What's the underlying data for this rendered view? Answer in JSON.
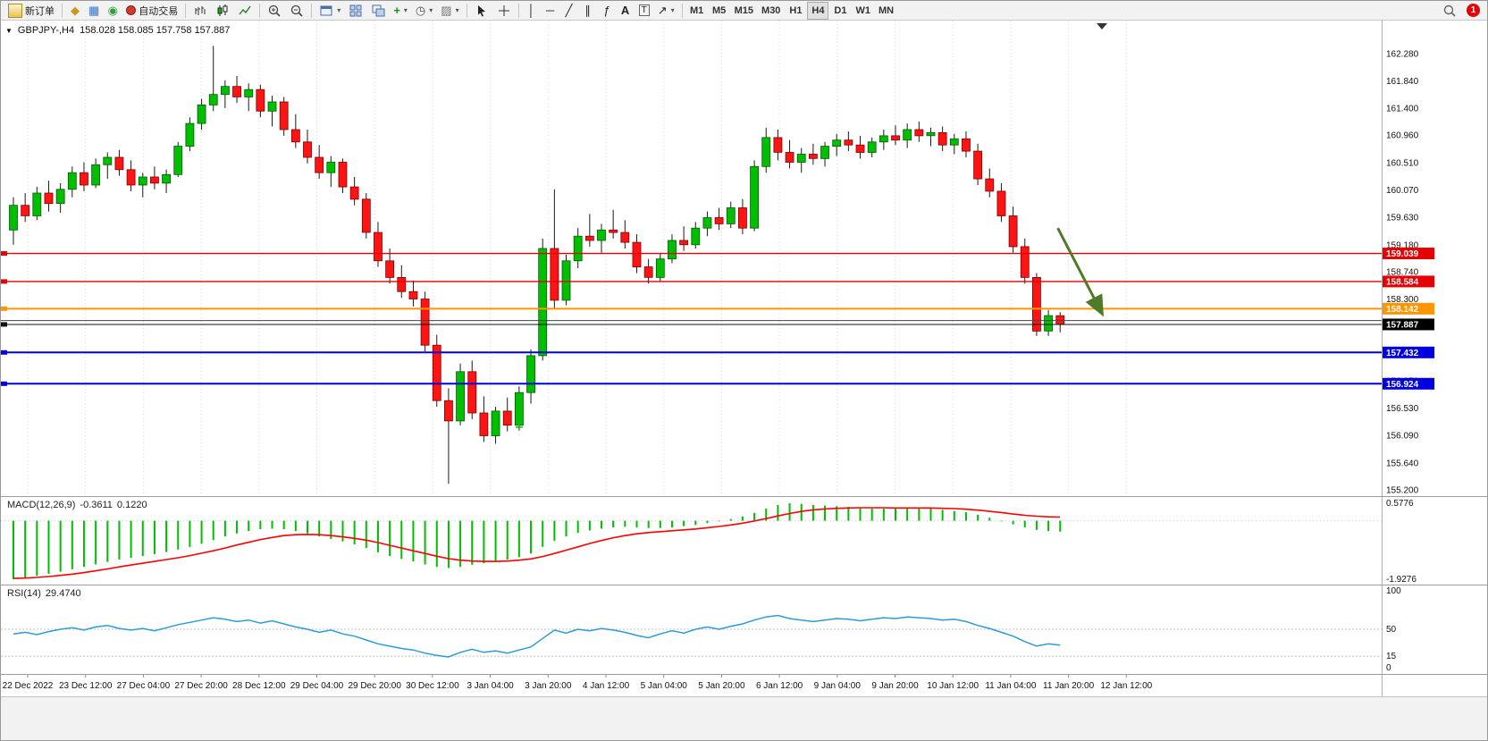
{
  "toolbar": {
    "new_order_label": "新订单",
    "autotrading_label": "自动交易",
    "timeframes": [
      "M1",
      "M5",
      "M15",
      "M30",
      "H1",
      "H4",
      "D1",
      "W1",
      "MN"
    ],
    "active_timeframe": "H4",
    "notification_count": "1"
  },
  "chart": {
    "symbol_period": "GBPJPY-,H4",
    "ohlc": "158.028 158.085 157.758 157.887"
  },
  "indicators": {
    "macd_name": "MACD(12,26,9)",
    "macd_value": "-0.3611",
    "macd_signal": "0.1220",
    "rsi_name": "RSI(14)",
    "rsi_value": "29.4740"
  },
  "chart_data": [
    {
      "type": "candlestick",
      "symbol": "GBPJPY-",
      "period": "H4",
      "last_ohlc": {
        "open": 158.028,
        "high": 158.085,
        "low": 157.758,
        "close": 157.887
      },
      "up_color": "#00BE00",
      "down_color": "#FF1414",
      "y_range": [
        155.1,
        162.82
      ],
      "y_axis_ticks": [
        "162.280",
        "161.840",
        "161.400",
        "160.960",
        "160.510",
        "160.070",
        "159.630",
        "159.180",
        "158.740",
        "158.300",
        "157.860",
        "157.420",
        "156.970",
        "156.530",
        "156.090",
        "155.640",
        "155.200"
      ],
      "x_labels": [
        "22 Dec 2022",
        "23 Dec 12:00",
        "27 Dec 04:00",
        "27 Dec 20:00",
        "28 Dec 12:00",
        "29 Dec 04:00",
        "29 Dec 20:00",
        "30 Dec 12:00",
        "3 Jan 04:00",
        "3 Jan 20:00",
        "4 Jan 12:00",
        "5 Jan 04:00",
        "5 Jan 20:00",
        "6 Jan 12:00",
        "9 Jan 04:00",
        "9 Jan 20:00",
        "10 Jan 12:00",
        "11 Jan 04:00",
        "11 Jan 20:00",
        "12 Jan 12:00"
      ],
      "hlines": [
        {
          "price": 159.039,
          "color": "#E60000",
          "width": 1.4,
          "label": "159.039"
        },
        {
          "price": 158.584,
          "color": "#E60000",
          "width": 1.4,
          "label": "158.584"
        },
        {
          "price": 158.142,
          "color": "#FF9500",
          "width": 2,
          "label": "158.142"
        },
        {
          "price": 157.95,
          "color": "#444444",
          "width": 1,
          "label": null
        },
        {
          "price": 157.887,
          "color": "#111111",
          "width": 1,
          "label": "157.887",
          "label_bg": "#000000"
        },
        {
          "price": 157.432,
          "color": "#0000E0",
          "width": 2,
          "label": "157.432"
        },
        {
          "price": 156.924,
          "color": "#0000E0",
          "width": 2,
          "label": "156.924"
        }
      ],
      "arrow": {
        "from_bar": 88.8,
        "from_price": 159.45,
        "to_bar": 92.6,
        "to_price": 158.05,
        "color": "#4E7B28"
      },
      "plus_marker": {
        "bar": 43,
        "price": 156.22,
        "color": "#22AA22"
      },
      "candles": [
        [
          159.42,
          159.95,
          159.18,
          159.82
        ],
        [
          159.82,
          160.02,
          159.55,
          159.65
        ],
        [
          159.65,
          160.12,
          159.58,
          160.02
        ],
        [
          160.02,
          160.22,
          159.72,
          159.85
        ],
        [
          159.85,
          160.18,
          159.7,
          160.08
        ],
        [
          160.08,
          160.45,
          159.95,
          160.35
        ],
        [
          160.35,
          160.52,
          160.05,
          160.15
        ],
        [
          160.15,
          160.58,
          160.1,
          160.48
        ],
        [
          160.48,
          160.68,
          160.25,
          160.6
        ],
        [
          160.6,
          160.72,
          160.3,
          160.4
        ],
        [
          160.4,
          160.55,
          160.05,
          160.15
        ],
        [
          160.15,
          160.35,
          159.95,
          160.28
        ],
        [
          160.28,
          160.45,
          160.08,
          160.18
        ],
        [
          160.18,
          160.4,
          160.02,
          160.32
        ],
        [
          160.32,
          160.85,
          160.28,
          160.78
        ],
        [
          160.78,
          161.25,
          160.7,
          161.15
        ],
        [
          161.15,
          161.55,
          161.05,
          161.45
        ],
        [
          161.45,
          162.41,
          161.35,
          161.62
        ],
        [
          161.62,
          161.85,
          161.4,
          161.75
        ],
        [
          161.75,
          161.92,
          161.48,
          161.58
        ],
        [
          161.58,
          161.8,
          161.35,
          161.7
        ],
        [
          161.7,
          161.78,
          161.25,
          161.35
        ],
        [
          161.35,
          161.6,
          161.1,
          161.5
        ],
        [
          161.5,
          161.58,
          160.95,
          161.05
        ],
        [
          161.05,
          161.3,
          160.75,
          160.85
        ],
        [
          160.85,
          161.05,
          160.5,
          160.6
        ],
        [
          160.6,
          160.8,
          160.25,
          160.35
        ],
        [
          160.35,
          160.62,
          160.12,
          160.52
        ],
        [
          160.52,
          160.58,
          160.02,
          160.12
        ],
        [
          160.12,
          160.28,
          159.82,
          159.92
        ],
        [
          159.92,
          160.02,
          159.28,
          159.38
        ],
        [
          159.38,
          159.55,
          158.82,
          158.92
        ],
        [
          158.92,
          159.12,
          158.55,
          158.65
        ],
        [
          158.65,
          158.85,
          158.32,
          158.42
        ],
        [
          158.42,
          158.6,
          158.18,
          158.3
        ],
        [
          158.3,
          158.42,
          157.45,
          157.55
        ],
        [
          157.55,
          157.72,
          156.55,
          156.65
        ],
        [
          156.65,
          156.85,
          155.3,
          156.32
        ],
        [
          156.32,
          157.25,
          156.25,
          157.12
        ],
        [
          157.12,
          157.3,
          156.35,
          156.45
        ],
        [
          156.45,
          156.72,
          155.98,
          156.08
        ],
        [
          156.08,
          156.55,
          155.95,
          156.48
        ],
        [
          156.48,
          156.7,
          156.15,
          156.25
        ],
        [
          156.25,
          156.88,
          156.18,
          156.78
        ],
        [
          156.78,
          157.48,
          156.6,
          157.38
        ],
        [
          157.38,
          159.28,
          157.3,
          159.12
        ],
        [
          159.12,
          160.08,
          158.15,
          158.28
        ],
        [
          158.28,
          159.02,
          158.2,
          158.92
        ],
        [
          158.92,
          159.45,
          158.8,
          159.32
        ],
        [
          159.32,
          159.68,
          159.15,
          159.25
        ],
        [
          159.25,
          159.52,
          159.05,
          159.42
        ],
        [
          159.42,
          159.75,
          159.28,
          159.38
        ],
        [
          159.38,
          159.58,
          159.12,
          159.22
        ],
        [
          159.22,
          159.35,
          158.72,
          158.82
        ],
        [
          158.82,
          158.95,
          158.55,
          158.65
        ],
        [
          158.65,
          159.05,
          158.58,
          158.95
        ],
        [
          158.95,
          159.35,
          158.88,
          159.25
        ],
        [
          159.25,
          159.48,
          159.08,
          159.18
        ],
        [
          159.18,
          159.55,
          159.12,
          159.45
        ],
        [
          159.45,
          159.72,
          159.32,
          159.62
        ],
        [
          159.62,
          159.78,
          159.42,
          159.52
        ],
        [
          159.52,
          159.88,
          159.45,
          159.78
        ],
        [
          159.78,
          159.92,
          159.35,
          159.45
        ],
        [
          159.45,
          160.55,
          159.4,
          160.45
        ],
        [
          160.45,
          161.08,
          160.35,
          160.92
        ],
        [
          160.92,
          161.05,
          160.55,
          160.68
        ],
        [
          160.68,
          160.88,
          160.42,
          160.52
        ],
        [
          160.52,
          160.75,
          160.35,
          160.65
        ],
        [
          160.65,
          160.82,
          160.48,
          160.58
        ],
        [
          160.58,
          160.85,
          160.45,
          160.78
        ],
        [
          160.78,
          160.98,
          160.62,
          160.88
        ],
        [
          160.88,
          161.02,
          160.7,
          160.8
        ],
        [
          160.8,
          160.95,
          160.58,
          160.68
        ],
        [
          160.68,
          160.92,
          160.6,
          160.85
        ],
        [
          160.85,
          161.05,
          160.72,
          160.95
        ],
        [
          160.95,
          161.12,
          160.8,
          160.88
        ],
        [
          160.88,
          161.15,
          160.75,
          161.05
        ],
        [
          161.05,
          161.18,
          160.85,
          160.95
        ],
        [
          160.95,
          161.08,
          160.78,
          161.0
        ],
        [
          161.0,
          161.1,
          160.7,
          160.8
        ],
        [
          160.8,
          160.98,
          160.65,
          160.9
        ],
        [
          160.9,
          161.02,
          160.6,
          160.7
        ],
        [
          160.7,
          160.82,
          160.15,
          160.25
        ],
        [
          160.25,
          160.42,
          159.95,
          160.05
        ],
        [
          160.05,
          160.18,
          159.55,
          159.65
        ],
        [
          159.65,
          159.8,
          159.05,
          159.15
        ],
        [
          159.15,
          159.28,
          158.55,
          158.65
        ],
        [
          158.65,
          158.72,
          157.7,
          157.78
        ],
        [
          157.78,
          158.12,
          157.7,
          158.03
        ],
        [
          158.028,
          158.085,
          157.758,
          157.887
        ]
      ]
    },
    {
      "type": "macd",
      "name": "MACD(12,26,9)",
      "value_main": -0.3611,
      "value_signal": 0.122,
      "y_range": [
        -1.9276,
        0.5776
      ],
      "y_axis_ticks": [
        "0.5776",
        "-1.9276"
      ],
      "histogram_color": "#00BE00",
      "signal_color": "#FF0000",
      "histogram": [
        -1.9276,
        -1.88,
        -1.82,
        -1.75,
        -1.68,
        -1.6,
        -1.52,
        -1.44,
        -1.36,
        -1.28,
        -1.22,
        -1.16,
        -1.1,
        -1.03,
        -0.95,
        -0.86,
        -0.76,
        -0.64,
        -0.52,
        -0.42,
        -0.34,
        -0.28,
        -0.26,
        -0.28,
        -0.34,
        -0.42,
        -0.52,
        -0.6,
        -0.68,
        -0.78,
        -0.9,
        -1.04,
        -1.16,
        -1.26,
        -1.34,
        -1.44,
        -1.52,
        -1.56,
        -1.52,
        -1.45,
        -1.4,
        -1.34,
        -1.28,
        -1.2,
        -1.08,
        -0.86,
        -0.66,
        -0.52,
        -0.4,
        -0.32,
        -0.26,
        -0.22,
        -0.2,
        -0.22,
        -0.24,
        -0.24,
        -0.22,
        -0.18,
        -0.14,
        -0.08,
        -0.02,
        0.06,
        0.14,
        0.26,
        0.4,
        0.52,
        0.5776,
        0.56,
        0.52,
        0.5,
        0.48,
        0.46,
        0.42,
        0.4,
        0.4,
        0.4,
        0.42,
        0.42,
        0.4,
        0.36,
        0.32,
        0.28,
        0.2,
        0.1,
        -0.02,
        -0.12,
        -0.22,
        -0.3,
        -0.34,
        -0.3611
      ],
      "signal": [
        -1.9,
        -1.89,
        -1.87,
        -1.84,
        -1.8,
        -1.76,
        -1.71,
        -1.65,
        -1.59,
        -1.52,
        -1.46,
        -1.4,
        -1.34,
        -1.28,
        -1.22,
        -1.15,
        -1.07,
        -0.99,
        -0.9,
        -0.8,
        -0.71,
        -0.62,
        -0.55,
        -0.49,
        -0.46,
        -0.45,
        -0.46,
        -0.49,
        -0.53,
        -0.58,
        -0.64,
        -0.72,
        -0.81,
        -0.9,
        -0.99,
        -1.08,
        -1.17,
        -1.25,
        -1.3,
        -1.33,
        -1.34,
        -1.34,
        -1.33,
        -1.3,
        -1.26,
        -1.18,
        -1.08,
        -0.97,
        -0.86,
        -0.75,
        -0.65,
        -0.56,
        -0.49,
        -0.43,
        -0.39,
        -0.36,
        -0.33,
        -0.3,
        -0.27,
        -0.23,
        -0.19,
        -0.14,
        -0.08,
        -0.01,
        0.07,
        0.16,
        0.24,
        0.31,
        0.36,
        0.39,
        0.41,
        0.42,
        0.43,
        0.43,
        0.43,
        0.42,
        0.42,
        0.42,
        0.42,
        0.41,
        0.4,
        0.38,
        0.35,
        0.31,
        0.27,
        0.22,
        0.18,
        0.15,
        0.13,
        0.122
      ]
    },
    {
      "type": "rsi",
      "name": "RSI(14)",
      "value": 29.474,
      "y_range": [
        0,
        100
      ],
      "levels": [
        50,
        15
      ],
      "y_axis_ticks": [
        "100",
        "50",
        "15",
        "0"
      ],
      "line_color": "#2E9BD6",
      "values": [
        44,
        46,
        43,
        47,
        50,
        52,
        49,
        53,
        55,
        51,
        49,
        51,
        48,
        52,
        56,
        59,
        62,
        65,
        63,
        60,
        62,
        58,
        61,
        57,
        53,
        50,
        46,
        49,
        44,
        41,
        36,
        31,
        28,
        25,
        23,
        19,
        16,
        14,
        20,
        24,
        20,
        22,
        19,
        23,
        27,
        38,
        49,
        45,
        50,
        48,
        51,
        49,
        46,
        42,
        39,
        44,
        48,
        45,
        50,
        53,
        50,
        54,
        57,
        62,
        66,
        68,
        64,
        62,
        60,
        62,
        64,
        63,
        61,
        63,
        65,
        64,
        66,
        65,
        64,
        62,
        63,
        60,
        55,
        51,
        46,
        41,
        34,
        28,
        31,
        29.474
      ]
    }
  ]
}
